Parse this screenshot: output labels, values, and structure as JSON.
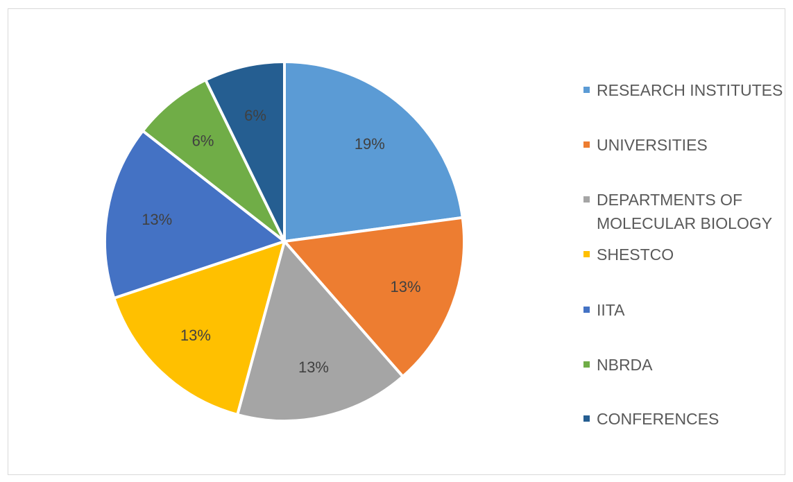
{
  "chart_data": {
    "type": "pie",
    "categories": [
      "RESEARCH INSTITUTES",
      "UNIVERSITIES",
      "DEPARTMENTS OF MOLECULAR BIOLOGY",
      "SHESTCO",
      "IITA",
      "NBRDA",
      "CONFERENCES"
    ],
    "values": [
      19,
      13,
      13,
      13,
      13,
      6,
      6
    ],
    "labels": [
      "19%",
      "13%",
      "13%",
      "13%",
      "13%",
      "6%",
      "6%"
    ],
    "colors": [
      "#5b9bd5",
      "#ed7d31",
      "#a5a5a5",
      "#ffc000",
      "#4472c4",
      "#70ad47",
      "#255e91"
    ],
    "title": "",
    "legend_position": "right"
  }
}
